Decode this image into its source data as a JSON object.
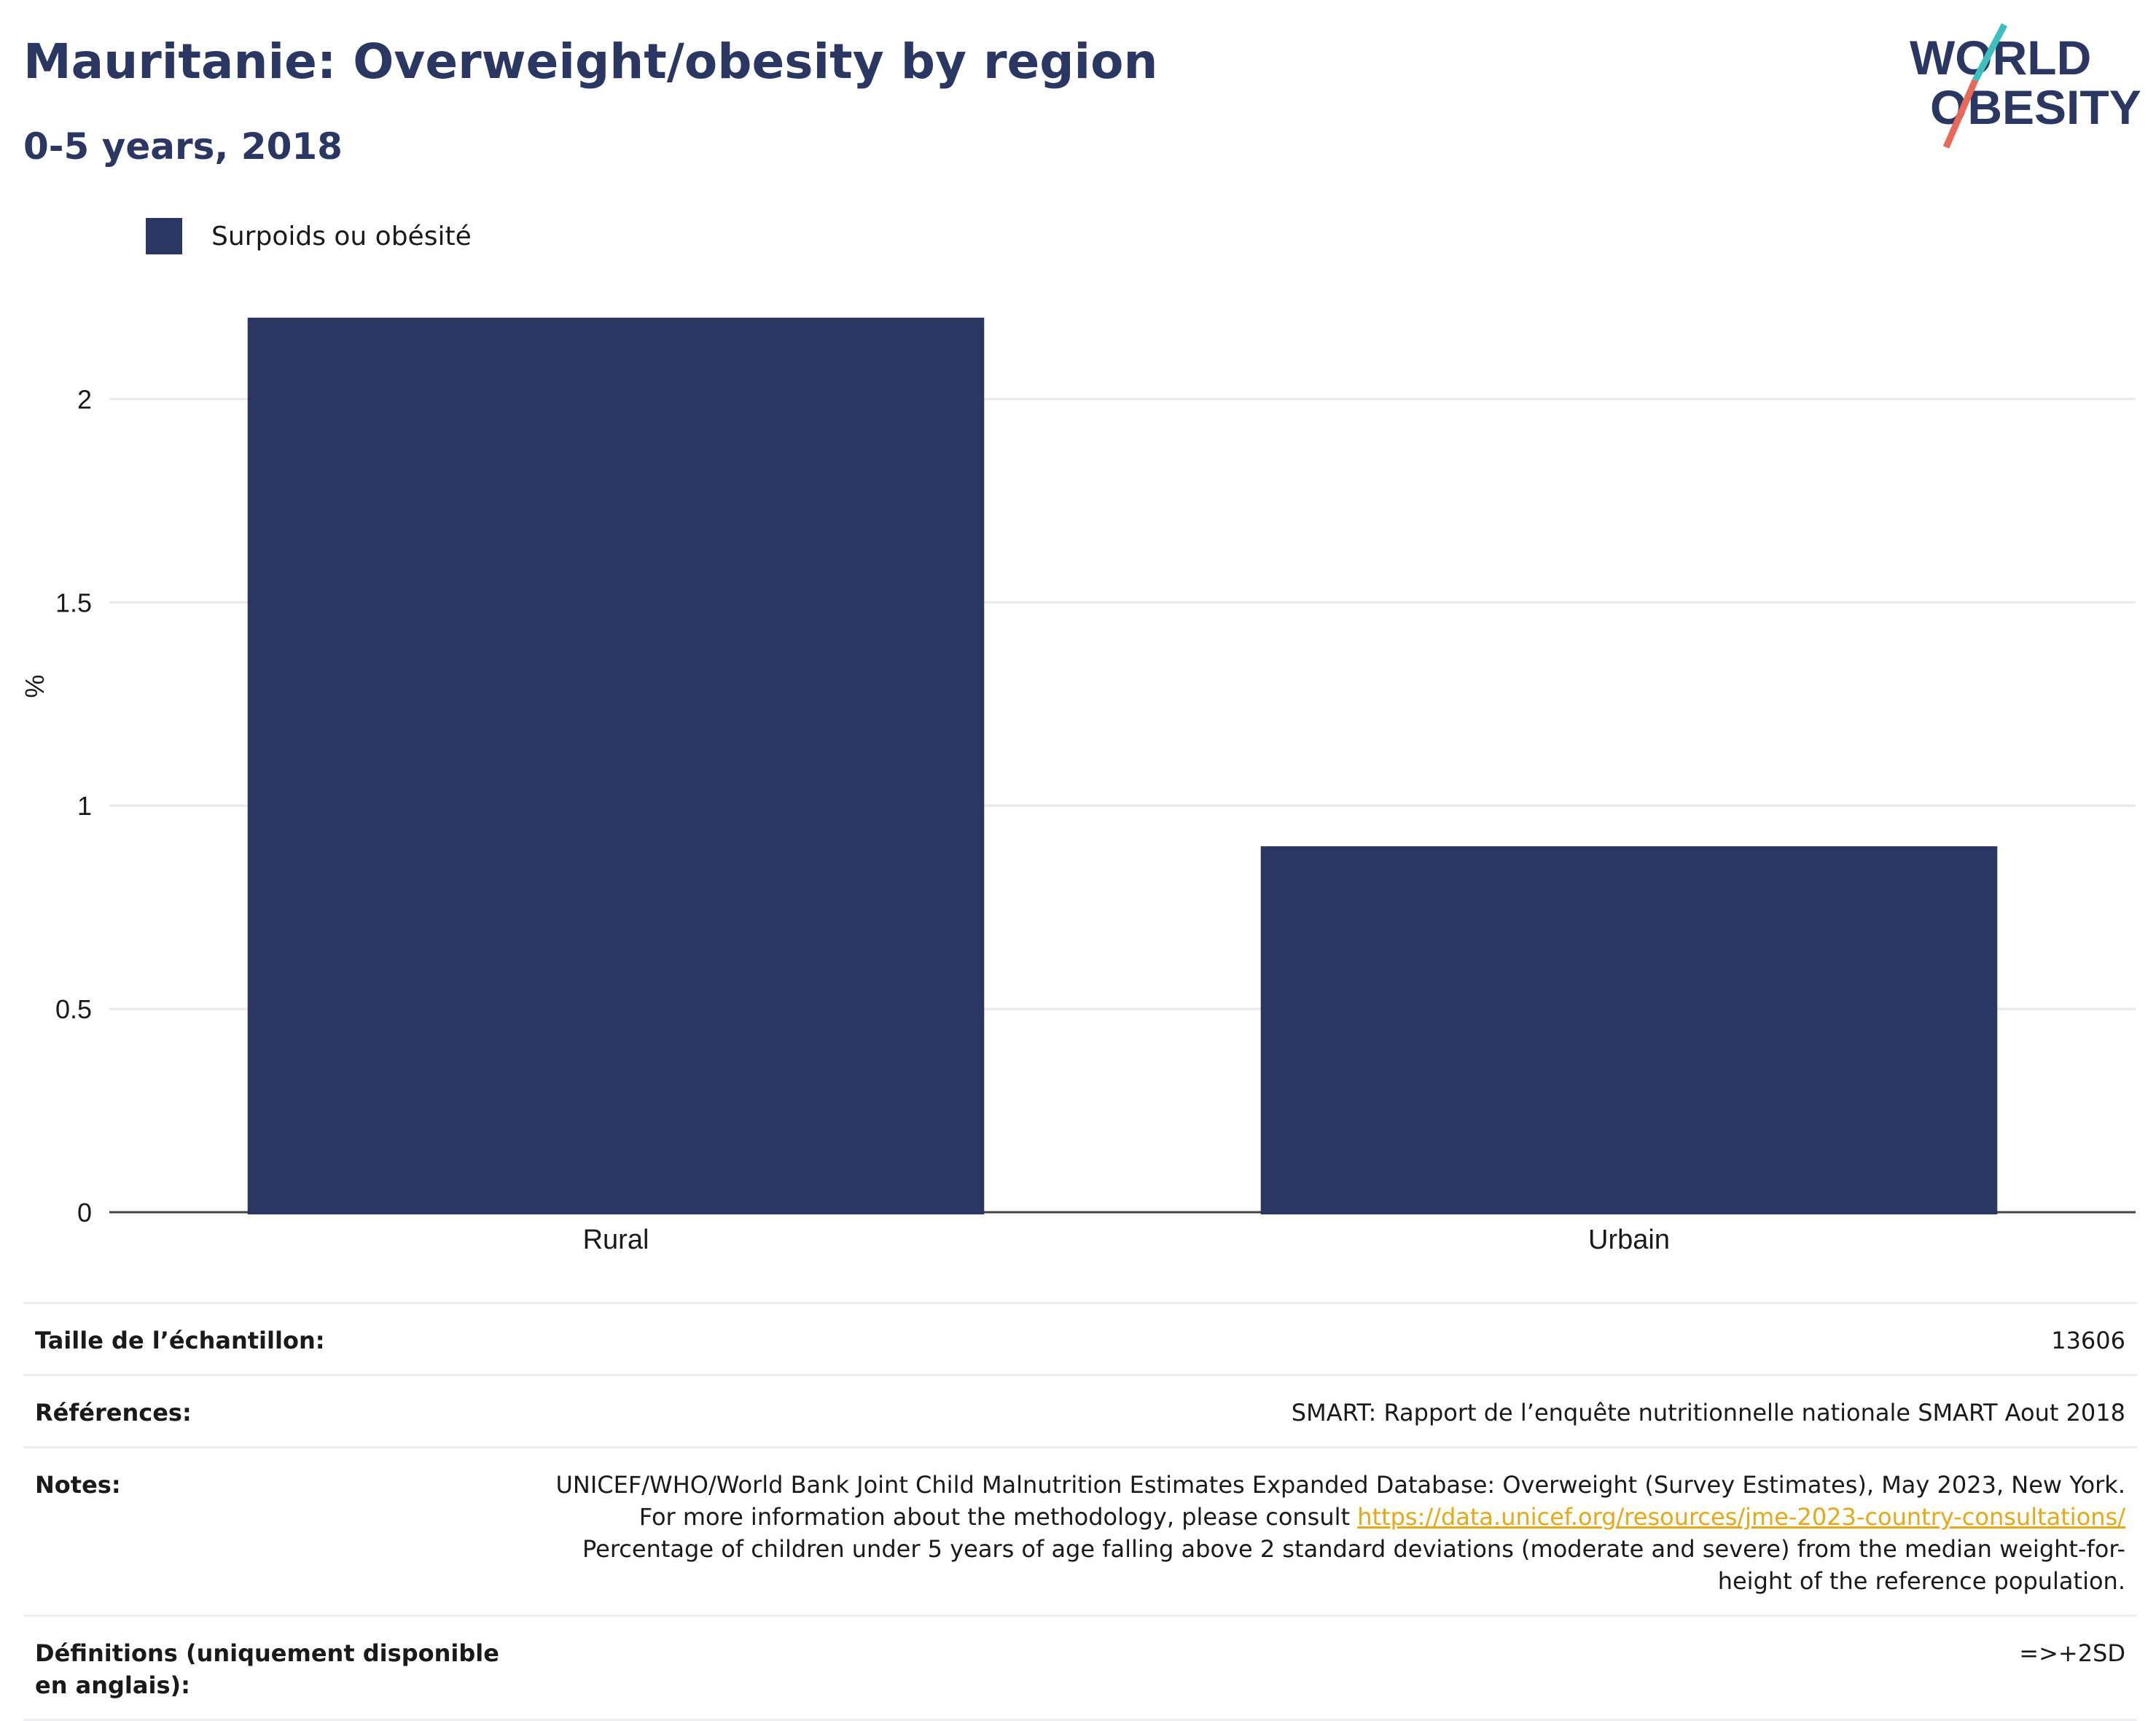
{
  "header": {
    "title": "Mauritanie: Overweight/obesity by region",
    "subtitle": "0-5 years, 2018"
  },
  "logo": {
    "line1": "WORLD",
    "line2": "OBESITY",
    "colors": {
      "navy": "#2b3763",
      "teal": "#3bbfbf",
      "coral": "#e8685a"
    }
  },
  "legend": {
    "label": "Surpoids ou obésité",
    "color": "#2b3763"
  },
  "chart_data": {
    "type": "bar",
    "categories": [
      "Rural",
      "Urbain"
    ],
    "series": [
      {
        "name": "Surpoids ou obésité",
        "values": [
          2.2,
          0.9
        ],
        "color": "#2b3763"
      }
    ],
    "ylabel": "%",
    "ylim": [
      0,
      2.3
    ],
    "yticks": [
      0,
      0.5,
      1,
      1.5,
      2
    ],
    "ytick_labels": [
      "0",
      "0.5",
      "1",
      "1.5",
      "2"
    ],
    "grid": true,
    "legend_position": "top-left"
  },
  "info": {
    "sample_size": {
      "label": "Taille de l’échantillon:",
      "value": "13606"
    },
    "references": {
      "label": "Références:",
      "value": "SMART: Rapport de l’enquête nutritionnelle nationale SMART Aout 2018"
    },
    "notes": {
      "label": "Notes:",
      "text1": "UNICEF/WHO/World Bank Joint Child Malnutrition Estimates Expanded Database: Overweight (Survey Estimates), May 2023, New York. For more information about the methodology, please consult ",
      "link": "https://data.unicef.org/resources/jme-2023-country-consultations/",
      "text2": "Percentage of children under 5 years of age falling above 2 standard deviations (moderate and severe) from the median weight-for-height of the reference population."
    },
    "definitions": {
      "label": "Définitions (uniquement disponible en anglais):",
      "value": "=>+2SD"
    }
  }
}
